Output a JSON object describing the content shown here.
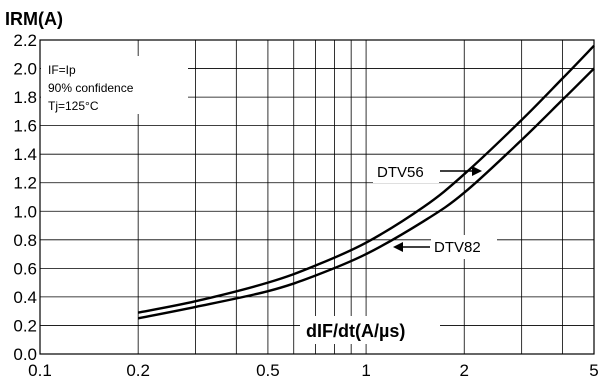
{
  "chart_data": {
    "type": "line",
    "ylabel": "IRM(A)",
    "xlabel": "dIF/dt(A/µs)",
    "x_scale": "log",
    "xlim": [
      0.1,
      5
    ],
    "ylim": [
      0.0,
      2.2
    ],
    "x_ticks": [
      0.1,
      0.2,
      0.5,
      1,
      2,
      5
    ],
    "x_tick_labels": [
      "0.1",
      "0.2",
      "0.5",
      "1",
      "2",
      "5"
    ],
    "x_minor_gridlines": [
      0.3,
      0.4,
      0.6,
      0.7,
      0.8,
      0.9,
      3,
      4
    ],
    "y_ticks": [
      0.0,
      0.2,
      0.4,
      0.6,
      0.8,
      1.0,
      1.2,
      1.4,
      1.6,
      1.8,
      2.0,
      2.2
    ],
    "y_tick_labels": [
      "0.0",
      "0.2",
      "0.4",
      "0.6",
      "0.8",
      "1.0",
      "1.2",
      "1.4",
      "1.6",
      "1.8",
      "2.0",
      "2.2"
    ],
    "grid": true,
    "conditions": [
      "IF=Ip",
      "90% confidence",
      "Tj=125°C"
    ],
    "series": [
      {
        "name": "DTV56",
        "x": [
          0.2,
          0.3,
          0.5,
          0.7,
          1,
          1.5,
          2,
          3,
          4,
          5
        ],
        "y": [
          0.29,
          0.37,
          0.5,
          0.62,
          0.78,
          1.03,
          1.26,
          1.64,
          1.93,
          2.16
        ]
      },
      {
        "name": "DTV82",
        "x": [
          0.2,
          0.3,
          0.5,
          0.7,
          1,
          1.5,
          2,
          3,
          4,
          5
        ],
        "y": [
          0.25,
          0.33,
          0.44,
          0.55,
          0.7,
          0.93,
          1.13,
          1.5,
          1.78,
          2.0
        ]
      }
    ]
  }
}
